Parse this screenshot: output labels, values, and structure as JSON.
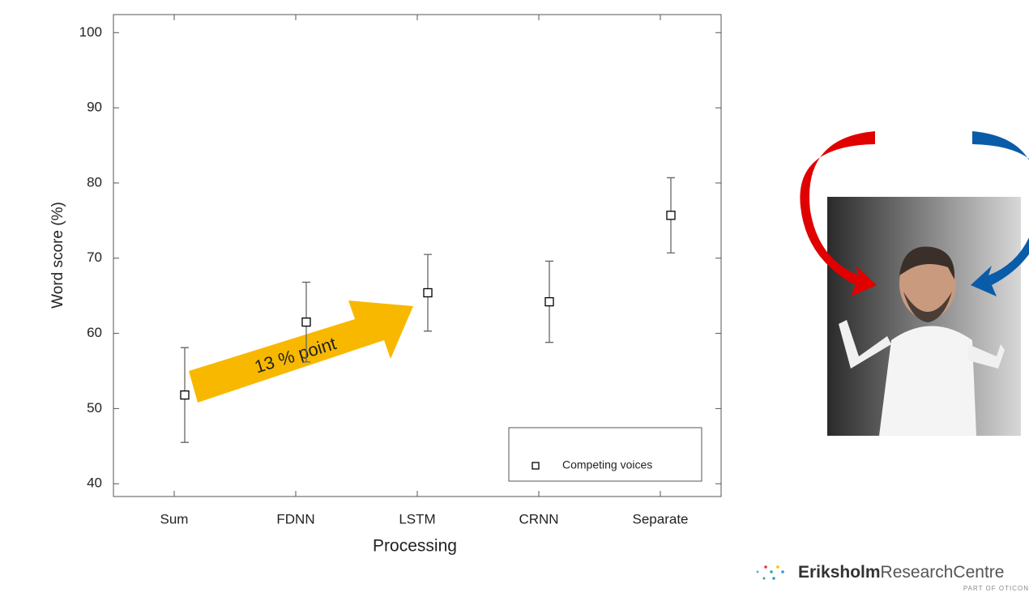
{
  "chart_data": {
    "type": "errorbar",
    "xlabel": "Processing",
    "ylabel": "Word score (%)",
    "categories": [
      "Sum",
      "FDNN",
      "LSTM",
      "CRNN",
      "Separate"
    ],
    "series": [
      {
        "name": "Competing voices",
        "color": "#000000",
        "values": [
          51.8,
          61.5,
          65.4,
          64.2,
          75.7
        ],
        "errors": [
          6.3,
          5.3,
          5.1,
          5.4,
          5.0
        ]
      }
    ],
    "ylim": [
      38.3,
      102.4
    ],
    "yticks": [
      40,
      50,
      60,
      70,
      80,
      90,
      100
    ],
    "legend": "lower right",
    "annotation": "13 % point"
  },
  "logo": {
    "name": "Eriksholm",
    "suffix": "ResearchCentre",
    "tagline": "PART OF OTICON"
  }
}
